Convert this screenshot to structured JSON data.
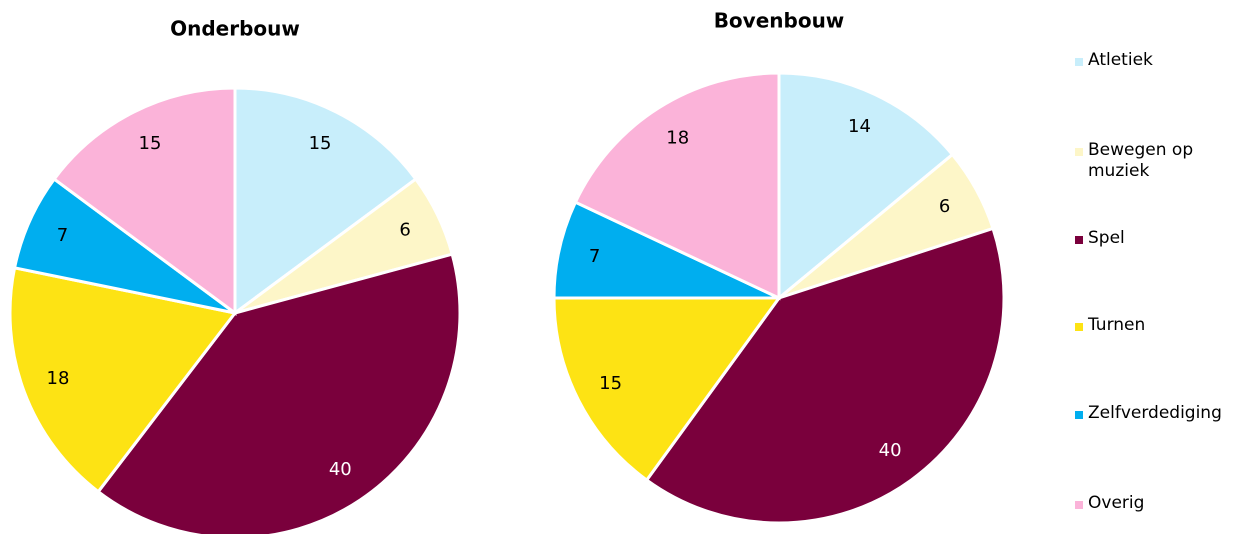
{
  "chart_data": [
    {
      "type": "pie",
      "title": "Onderbouw",
      "categories": [
        "Atletiek",
        "Bewegen op muziek",
        "Spel",
        "Turnen",
        "Zelfverdediging",
        "Overig"
      ],
      "values": [
        15,
        6,
        40,
        18,
        7,
        15
      ],
      "colors": [
        "#c8eefb",
        "#fdf6c8",
        "#7a003c",
        "#fde314",
        "#00aeef",
        "#fbb3d9"
      ]
    },
    {
      "type": "pie",
      "title": "Bovenbouw",
      "categories": [
        "Atletiek",
        "Bewegen op muziek",
        "Spel",
        "Turnen",
        "Zelfverdediging",
        "Overig"
      ],
      "values": [
        14,
        6,
        40,
        15,
        7,
        18
      ],
      "colors": [
        "#c8eefb",
        "#fdf6c8",
        "#7a003c",
        "#fde314",
        "#00aeef",
        "#fbb3d9"
      ]
    }
  ]
}
